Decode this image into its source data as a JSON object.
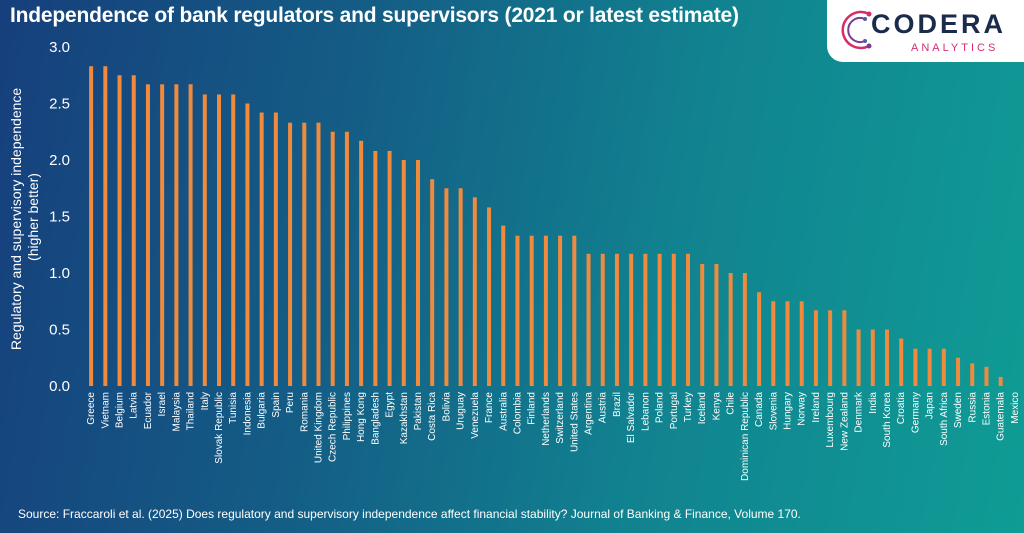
{
  "title": "Independence of bank regulators and supervisors (2021 or latest estimate)",
  "source": "Source: Fraccaroli et al. (2025) Does regulatory and supervisory independence affect financial stability? Journal of Banking & Finance, Volume 170.",
  "logo": {
    "brand": "CODERA",
    "sub": "ANALYTICS"
  },
  "colors": {
    "bar": "#f08a3c",
    "text": "#ffffff"
  },
  "chart_data": {
    "type": "bar",
    "title": "Independence of bank regulators and supervisors (2021 or latest estimate)",
    "xlabel": "",
    "ylabel": [
      "Regulatory and supervisory independence",
      "(higher better)"
    ],
    "ylim": [
      0,
      3.0
    ],
    "yticks": [
      0.0,
      0.5,
      1.0,
      1.5,
      2.0,
      2.5,
      3.0
    ],
    "ytick_labels": [
      "0.0",
      "0.5",
      "1.0",
      "1.5",
      "2.0",
      "2.5",
      "3.0"
    ],
    "grid": false,
    "categories": [
      "Greece",
      "Vietnam",
      "Belgium",
      "Latvia",
      "Ecuador",
      "Israel",
      "Malaysia",
      "Thailand",
      "Italy",
      "Slovak Republic",
      "Tunisia",
      "Indonesia",
      "Bulgaria",
      "Spain",
      "Peru",
      "Romania",
      "United Kingdom",
      "Czech Republic",
      "Philippines",
      "Hong Kong",
      "Bangladesh",
      "Egypt",
      "Kazakhstan",
      "Pakistan",
      "Costa Rica",
      "Bolivia",
      "Uruguay",
      "Venezuela",
      "France",
      "Australia",
      "Colombia",
      "Finland",
      "Netherlands",
      "Switzerland",
      "United States",
      "Argentina",
      "Austria",
      "Brazil",
      "El Salvador",
      "Lebanon",
      "Poland",
      "Portugal",
      "Turkey",
      "Iceland",
      "Kenya",
      "Chile",
      "Dominican Republic",
      "Canada",
      "Slovenia",
      "Hungary",
      "Norway",
      "Ireland",
      "Luxembourg",
      "New Zealand",
      "Denmark",
      "India",
      "South Korea",
      "Croatia",
      "Germany",
      "Japan",
      "South Africa",
      "Sweden",
      "Russia",
      "Estonia",
      "Guatemala",
      "Mexico"
    ],
    "values": [
      2.83,
      2.83,
      2.75,
      2.75,
      2.67,
      2.67,
      2.67,
      2.67,
      2.58,
      2.58,
      2.58,
      2.5,
      2.42,
      2.42,
      2.33,
      2.33,
      2.33,
      2.25,
      2.25,
      2.17,
      2.08,
      2.08,
      2.0,
      2.0,
      1.83,
      1.75,
      1.75,
      1.67,
      1.58,
      1.42,
      1.33,
      1.33,
      1.33,
      1.33,
      1.33,
      1.17,
      1.17,
      1.17,
      1.17,
      1.17,
      1.17,
      1.17,
      1.17,
      1.08,
      1.08,
      1.0,
      1.0,
      0.83,
      0.75,
      0.75,
      0.75,
      0.67,
      0.67,
      0.67,
      0.5,
      0.5,
      0.5,
      0.42,
      0.33,
      0.33,
      0.33,
      0.25,
      0.2,
      0.17,
      0.08,
      0.0
    ]
  }
}
